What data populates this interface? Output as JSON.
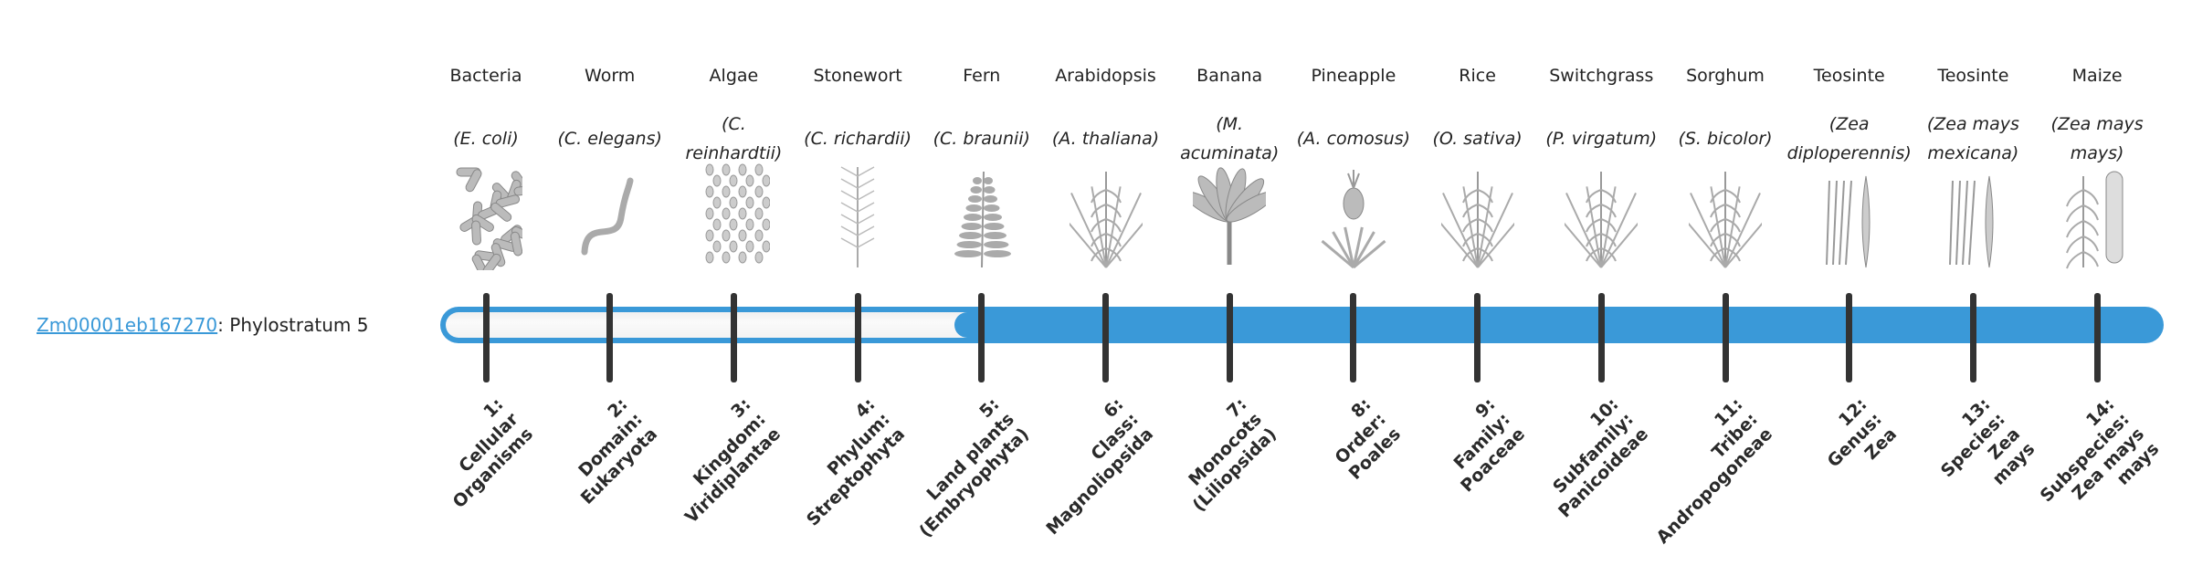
{
  "gene": {
    "id": "Zm00001eb167270",
    "separator": ": ",
    "text": "Phylostratum 5"
  },
  "phylostratum": {
    "value": 5,
    "total": 14
  },
  "colors": {
    "accent": "#3a99d8",
    "tick": "#333333",
    "empty": "#f5f5f5"
  },
  "columns": [
    {
      "common": "Bacteria",
      "sci": "(E. coli)",
      "icon": "bacteria-illustration",
      "rank": [
        "1:",
        "Cellular",
        "Organisms"
      ]
    },
    {
      "common": "Worm",
      "sci": "(C. elegans)",
      "icon": "worm-illustration",
      "rank": [
        "2:",
        "Domain:",
        "Eukaryota"
      ]
    },
    {
      "common": "Algae",
      "sci": "(C. reinhardtii)",
      "icon": "algae-illustration",
      "rank": [
        "3:",
        "Kingdom:",
        "Viridiplantae"
      ]
    },
    {
      "common": "Stonewort",
      "sci": "(C. richardii)",
      "icon": "stonewort-illustration",
      "rank": [
        "4:",
        "Phylum:",
        "Streptophyta"
      ]
    },
    {
      "common": "Fern",
      "sci": "(C. braunii)",
      "icon": "fern-illustration",
      "rank": [
        "5:",
        "Land plants",
        "(Embryophyta)"
      ]
    },
    {
      "common": "Arabidopsis",
      "sci": "(A. thaliana)",
      "icon": "arabidopsis-illustration",
      "rank": [
        "6:",
        "Class:",
        "Magnoliopsida"
      ]
    },
    {
      "common": "Banana",
      "sci": "(M. acuminata)",
      "icon": "banana-illustration",
      "rank": [
        "7:",
        "Monocots",
        "(Liliopsida)"
      ]
    },
    {
      "common": "Pineapple",
      "sci": "(A. comosus)",
      "icon": "pineapple-illustration",
      "rank": [
        "8:",
        "Order:",
        "Poales"
      ]
    },
    {
      "common": "Rice",
      "sci": "(O. sativa)",
      "icon": "rice-illustration",
      "rank": [
        "9:",
        "Family:",
        "Poaceae"
      ]
    },
    {
      "common": "Switchgrass",
      "sci": "(P. virgatum)",
      "icon": "switchgrass-illustration",
      "rank": [
        "10:",
        "Subfamily:",
        "Panicoideae"
      ]
    },
    {
      "common": "Sorghum",
      "sci": "(S. bicolor)",
      "icon": "sorghum-illustration",
      "rank": [
        "11:",
        "Tribe:",
        "Andropogoneae"
      ]
    },
    {
      "common": "Teosinte",
      "sci": "(Zea diploperennis)",
      "icon": "teosinte-illustration",
      "rank": [
        "12:",
        "Genus:",
        "Zea"
      ]
    },
    {
      "common": "Teosinte",
      "sci": "(Zea mays mexicana)",
      "icon": "teosinte-illustration",
      "rank": [
        "13:",
        "Species:",
        "Zea",
        "mays"
      ]
    },
    {
      "common": "Maize",
      "sci": "(Zea mays mays)",
      "icon": "maize-illustration",
      "rank": [
        "14:",
        "Subspecies:",
        "Zea mays",
        "mays"
      ]
    }
  ]
}
